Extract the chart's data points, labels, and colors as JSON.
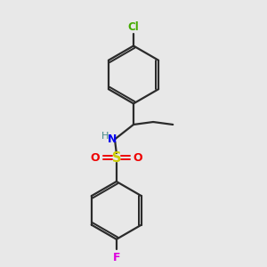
{
  "background_color": "#e8e8e8",
  "bond_color": "#2b2b2b",
  "cl_color": "#44aa00",
  "f_color": "#dd00dd",
  "n_color": "#0000ee",
  "s_color": "#cccc00",
  "o_color": "#ee0000",
  "h_color": "#448888",
  "figsize": [
    3.0,
    3.0
  ],
  "dpi": 100,
  "xlim": [
    0,
    10
  ],
  "ylim": [
    0,
    10
  ]
}
